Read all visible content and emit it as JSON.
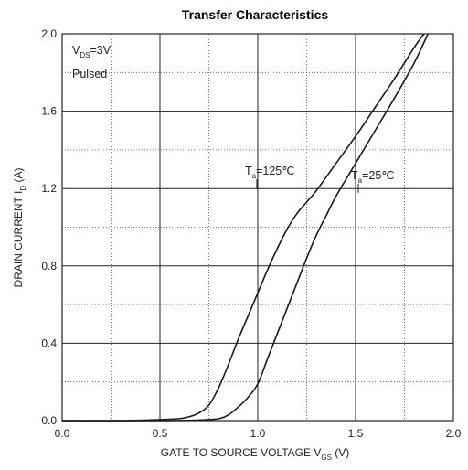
{
  "chart_data": {
    "type": "line",
    "title": "Transfer Characteristics",
    "xlabel": {
      "main": "GATE TO SOURCE VOLTAGE V",
      "sub": "GS",
      "suffix": " (V)"
    },
    "ylabel": {
      "main": "DRAIN CURRENT I",
      "sub": "D",
      "suffix": " (A)"
    },
    "xlim": [
      0.0,
      2.0
    ],
    "ylim": [
      0.0,
      2.0
    ],
    "x_ticks": [
      "0.0",
      "0.5",
      "1.0",
      "1.5",
      "2.0"
    ],
    "y_ticks": [
      "0.0",
      "0.4",
      "0.8",
      "1.2",
      "1.6",
      "2.0"
    ],
    "grid": {
      "major": true,
      "minor_dotted": true
    },
    "conditions": {
      "vds": {
        "main": "V",
        "sub": "DS",
        "suffix": "=3V"
      },
      "pulsed": "Pulsed"
    },
    "series": [
      {
        "name": {
          "main": "T",
          "sub": "a",
          "suffix": "=125℃"
        },
        "x": [
          0.0,
          0.3,
          0.5,
          0.6,
          0.65,
          0.7,
          0.75,
          0.8,
          0.85,
          0.9,
          0.95,
          1.0,
          1.05,
          1.1,
          1.15,
          1.2,
          1.25,
          1.3,
          1.4,
          1.5,
          1.6,
          1.7,
          1.8,
          1.85
        ],
        "y": [
          0.0,
          0.0,
          0.005,
          0.01,
          0.02,
          0.04,
          0.08,
          0.17,
          0.29,
          0.42,
          0.54,
          0.66,
          0.78,
          0.89,
          0.99,
          1.07,
          1.13,
          1.19,
          1.33,
          1.47,
          1.62,
          1.77,
          1.93,
          2.0
        ]
      },
      {
        "name": {
          "main": "T",
          "sub": "a",
          "suffix": "=25℃"
        },
        "x": [
          0.0,
          0.5,
          0.7,
          0.8,
          0.85,
          0.9,
          0.95,
          1.0,
          1.05,
          1.1,
          1.15,
          1.2,
          1.25,
          1.3,
          1.35,
          1.4,
          1.5,
          1.6,
          1.7,
          1.8,
          1.87
        ],
        "y": [
          0.0,
          0.0,
          0.003,
          0.01,
          0.03,
          0.07,
          0.12,
          0.19,
          0.32,
          0.45,
          0.58,
          0.71,
          0.84,
          0.96,
          1.06,
          1.16,
          1.33,
          1.5,
          1.67,
          1.85,
          2.0
        ]
      }
    ]
  }
}
